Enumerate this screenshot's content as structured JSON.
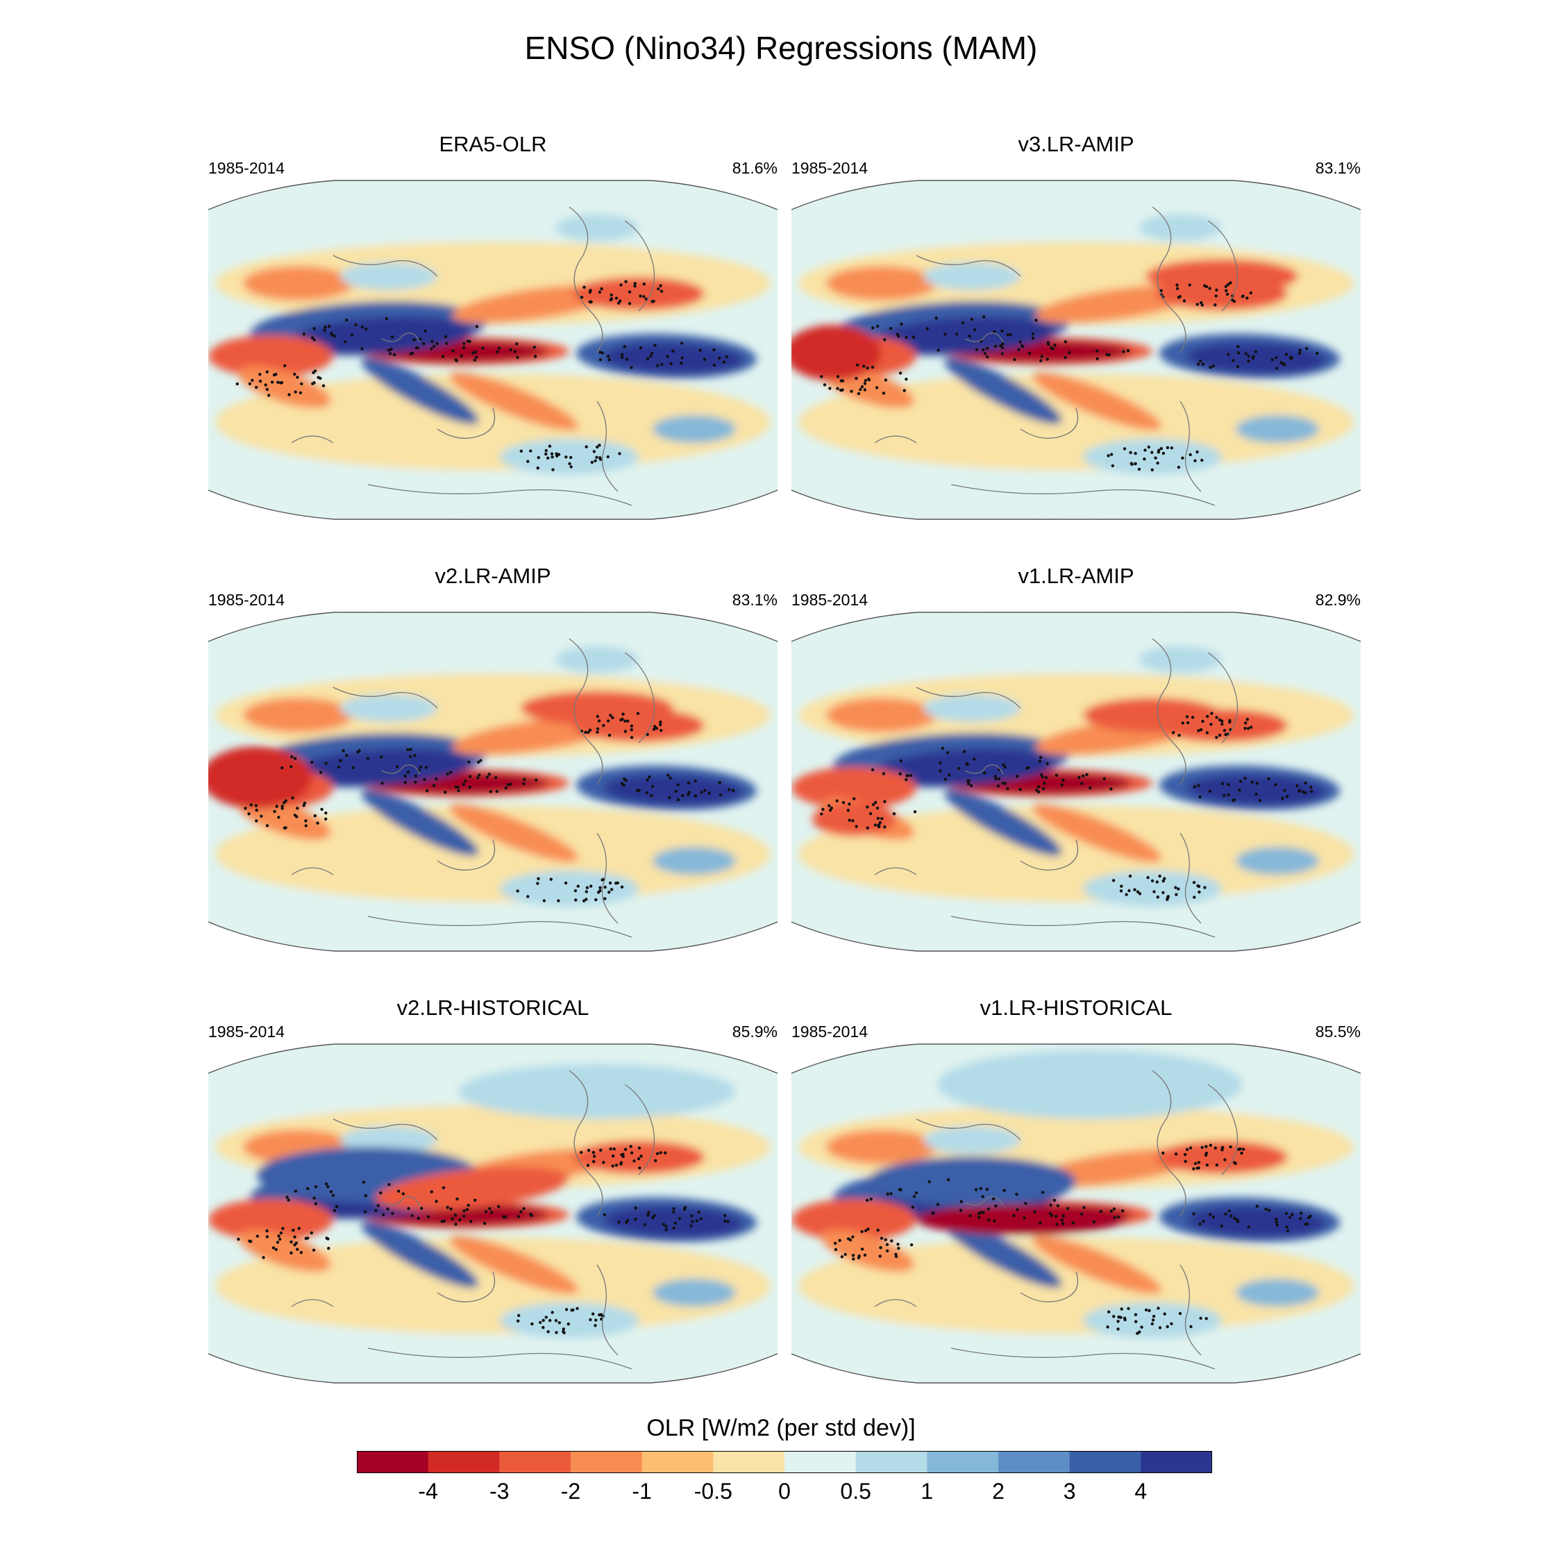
{
  "title": "ENSO (Nino34) Regressions (MAM)",
  "colorbar": {
    "label": "OLR [W/m2 (per std dev)]",
    "ticks": [
      "-4",
      "-3",
      "-2",
      "-1",
      "-0.5",
      "0",
      "0.5",
      "1",
      "2",
      "3",
      "4"
    ],
    "colors": [
      "#a50026",
      "#d22b26",
      "#ec5a3c",
      "#f88d52",
      "#fdbf6f",
      "#f9e3a6",
      "#e0f3f0",
      "#b4dbe8",
      "#85b8d8",
      "#5d8ec4",
      "#3a5ea8",
      "#2b3690"
    ]
  },
  "chart_data": [
    {
      "type": "heatmap",
      "title": "ERA5-OLR",
      "period": "1985-2014",
      "pattern_correlation": "81.6%",
      "variable": "OLR",
      "units": "W/m2 (per std dev)",
      "levels": [
        -4,
        -3,
        -2,
        -1,
        -0.5,
        0,
        0.5,
        1,
        2,
        3,
        4
      ]
    },
    {
      "type": "heatmap",
      "title": "v3.LR-AMIP",
      "period": "1985-2014",
      "pattern_correlation": "83.1%",
      "variable": "OLR",
      "units": "W/m2 (per std dev)",
      "levels": [
        -4,
        -3,
        -2,
        -1,
        -0.5,
        0,
        0.5,
        1,
        2,
        3,
        4
      ]
    },
    {
      "type": "heatmap",
      "title": "v2.LR-AMIP",
      "period": "1985-2014",
      "pattern_correlation": "83.1%",
      "variable": "OLR",
      "units": "W/m2 (per std dev)",
      "levels": [
        -4,
        -3,
        -2,
        -1,
        -0.5,
        0,
        0.5,
        1,
        2,
        3,
        4
      ]
    },
    {
      "type": "heatmap",
      "title": "v1.LR-AMIP",
      "period": "1985-2014",
      "pattern_correlation": "82.9%",
      "variable": "OLR",
      "units": "W/m2 (per std dev)",
      "levels": [
        -4,
        -3,
        -2,
        -1,
        -0.5,
        0,
        0.5,
        1,
        2,
        3,
        4
      ]
    },
    {
      "type": "heatmap",
      "title": "v2.LR-HISTORICAL",
      "period": "1985-2014",
      "pattern_correlation": "85.9%",
      "variable": "OLR",
      "units": "W/m2 (per std dev)",
      "levels": [
        -4,
        -3,
        -2,
        -1,
        -0.5,
        0,
        0.5,
        1,
        2,
        3,
        4
      ]
    },
    {
      "type": "heatmap",
      "title": "v1.LR-HISTORICAL",
      "period": "1985-2014",
      "pattern_correlation": "85.5%",
      "variable": "OLR",
      "units": "W/m2 (per std dev)",
      "levels": [
        -4,
        -3,
        -2,
        -1,
        -0.5,
        0,
        0.5,
        1,
        2,
        3,
        4
      ]
    }
  ]
}
